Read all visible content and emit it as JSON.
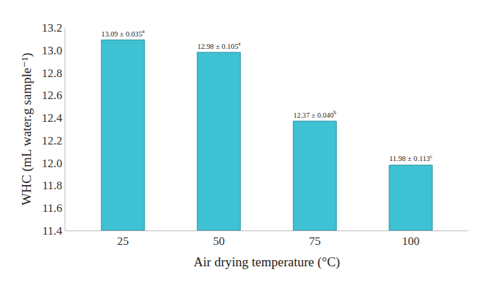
{
  "chart_data": {
    "type": "bar",
    "x_label": "Air drying temperature (°C)",
    "y_label": "WHC (mL water.g sample⁻¹)",
    "categories": [
      "25",
      "50",
      "75",
      "100"
    ],
    "values": [
      13.09,
      12.98,
      12.37,
      11.98
    ],
    "value_labels": [
      "13.09 ± 0.035",
      "12.98 ± 0.105",
      "12.37 ± 0.040",
      "11.98 ± 0.113"
    ],
    "letters": [
      "a",
      "a",
      "b",
      "c"
    ],
    "color": "#3ec1d3",
    "ylim": [
      11.4,
      13.2
    ],
    "yticks": [
      11.4,
      11.6,
      11.8,
      {
        "value": 12,
        "label": "12.0"
      },
      12.2,
      12.4,
      12.6,
      12.8,
      {
        "value": 13,
        "label": "13.0"
      },
      13.2
    ],
    "grid": false,
    "data_labels": true
  }
}
